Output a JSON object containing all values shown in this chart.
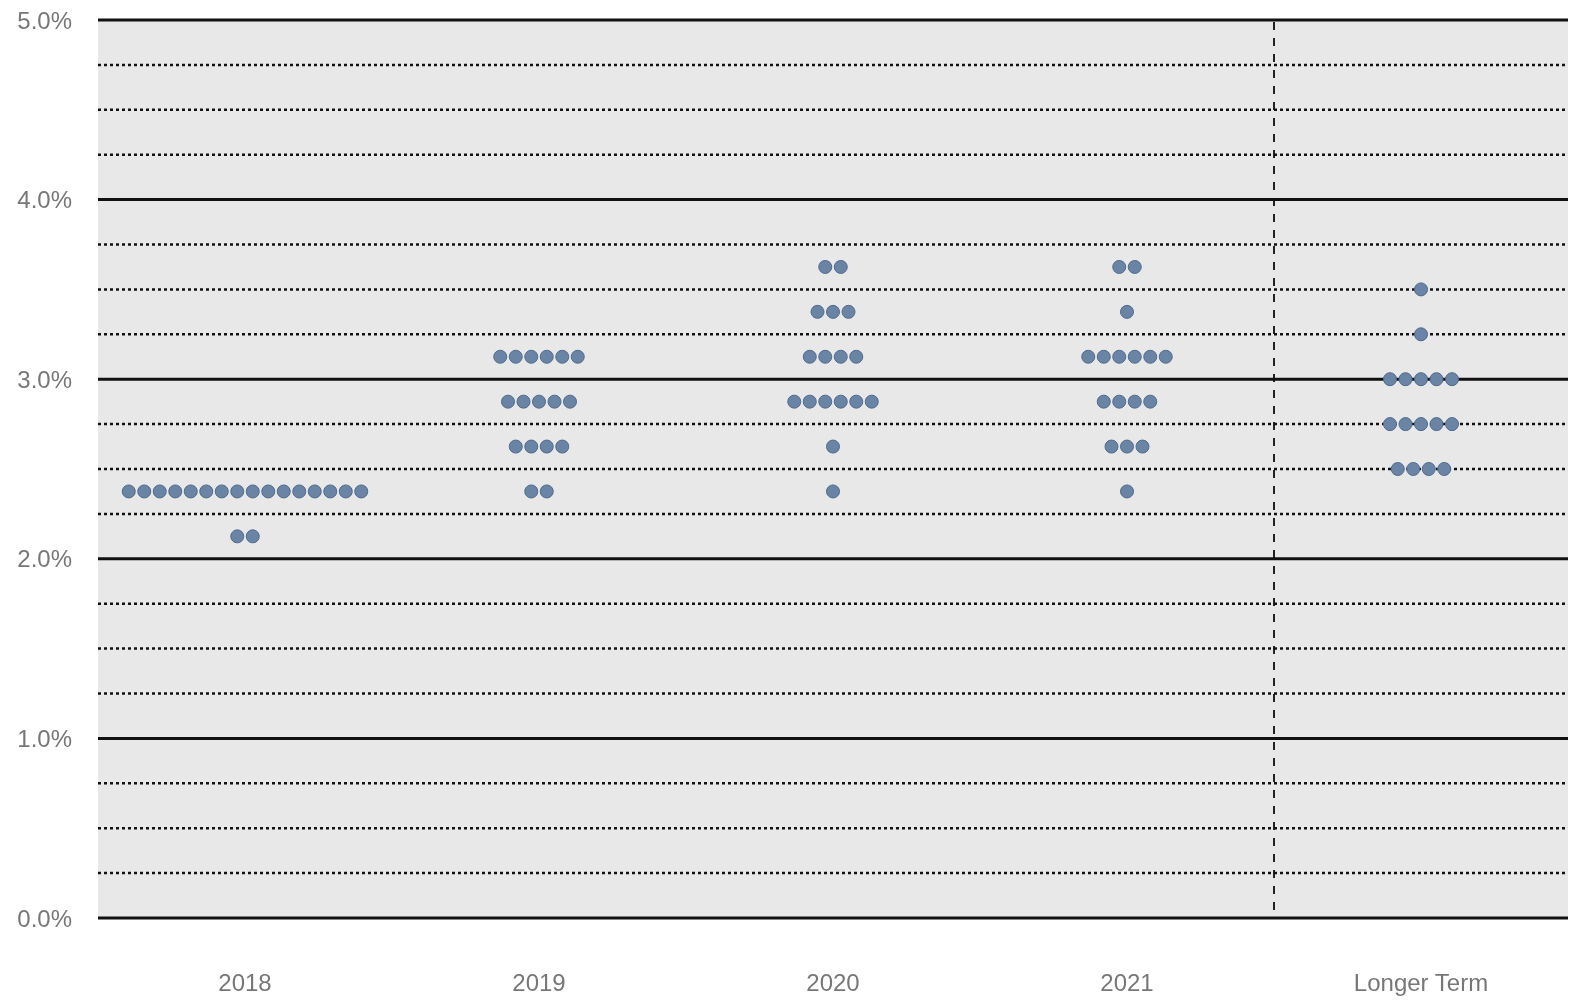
{
  "chart_data": {
    "type": "scatter",
    "categories": [
      "2018",
      "2019",
      "2020",
      "2021",
      "Longer Term"
    ],
    "series": [
      {
        "color": "#6a84a6",
        "values": [
          2.375,
          3.125,
          3.625,
          3.625,
          3.5
        ]
      },
      {
        "color": "#6a84a6",
        "values": [
          2.375,
          3.125,
          3.625,
          3.625,
          3.25
        ]
      },
      {
        "color": "#6a84a6",
        "values": [
          2.375,
          3.125,
          3.375,
          3.375,
          3
        ]
      },
      {
        "color": "#6a84a6",
        "values": [
          2.375,
          3.125,
          3.375,
          3.125,
          3
        ]
      },
      {
        "color": "#6a84a6",
        "values": [
          2.375,
          3.125,
          3.375,
          3.125,
          3
        ]
      },
      {
        "color": "#6a84a6",
        "values": [
          2.375,
          3.125,
          3.125,
          3.125,
          3
        ]
      },
      {
        "color": "#6a84a6",
        "values": [
          2.375,
          2.875,
          3.125,
          3.125,
          3
        ]
      },
      {
        "color": "#6a84a6",
        "values": [
          2.375,
          2.875,
          3.125,
          3.125,
          2.75
        ]
      },
      {
        "color": "#6a84a6",
        "values": [
          2.375,
          2.875,
          3.125,
          3.125,
          2.75
        ]
      },
      {
        "color": "#6a84a6",
        "values": [
          2.375,
          2.875,
          2.875,
          2.875,
          2.75
        ]
      },
      {
        "color": "#6a84a6",
        "values": [
          2.375,
          2.875,
          2.875,
          2.875,
          2.75
        ]
      },
      {
        "color": "#6a84a6",
        "values": [
          2.375,
          2.625,
          2.875,
          2.875,
          2.75
        ]
      },
      {
        "color": "#6a84a6",
        "values": [
          2.375,
          2.625,
          2.875,
          2.875,
          2.5
        ]
      },
      {
        "color": "#6a84a6",
        "values": [
          2.375,
          2.625,
          2.875,
          2.625,
          2.5
        ]
      },
      {
        "color": "#6a84a6",
        "values": [
          2.375,
          2.625,
          2.875,
          2.625,
          2.5
        ]
      },
      {
        "color": "#6a84a6",
        "values": [
          2.375,
          2.375,
          2.625,
          2.625,
          2.5
        ]
      },
      {
        "color": "#6a84a6",
        "values": [
          2.125,
          2.375,
          2.375,
          2.375,
          null
        ]
      },
      {
        "color": "#6a84a6",
        "values": [
          2.125,
          null,
          null,
          null,
          null
        ]
      }
    ],
    "ylim": [
      0,
      5
    ],
    "yticks": [
      {
        "value": 0,
        "label": "0.0%"
      },
      {
        "value": 0.25,
        "label": null
      },
      {
        "value": 0.5,
        "label": null
      },
      {
        "value": 0.75,
        "label": null
      },
      {
        "value": 1,
        "label": "1.0%"
      },
      {
        "value": 1.25,
        "label": null
      },
      {
        "value": 1.5,
        "label": null
      },
      {
        "value": 1.75,
        "label": null
      },
      {
        "value": 2,
        "label": "2.0%"
      },
      {
        "value": 2.25,
        "label": null
      },
      {
        "value": 2.5,
        "label": null
      },
      {
        "value": 2.75,
        "label": null
      },
      {
        "value": 3,
        "label": "3.0%"
      },
      {
        "value": 3.25,
        "label": null
      },
      {
        "value": 3.5,
        "label": null
      },
      {
        "value": 3.75,
        "label": null
      },
      {
        "value": 4,
        "label": "4.0%"
      },
      {
        "value": 4.25,
        "label": null
      },
      {
        "value": 4.5,
        "label": null
      },
      {
        "value": 4.75,
        "label": null
      },
      {
        "value": 5,
        "label": "5.0%"
      }
    ],
    "grid": "y",
    "marker": "circle"
  }
}
